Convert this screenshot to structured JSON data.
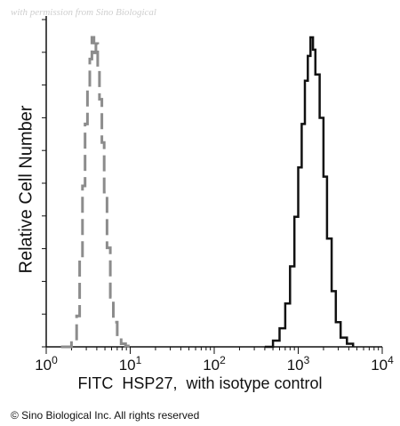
{
  "watermark": "with permission from Sino Biological",
  "copyright": "© Sino Biological Inc. All rights reserved",
  "chart_data": {
    "type": "line",
    "xlabel": "FITC  HSP27,  with isotype control",
    "ylabel": "Relative Cell Number",
    "xscale": "log",
    "xlim": [
      1,
      10000
    ],
    "ylim": [
      0,
      100
    ],
    "x_tick_labels": [
      {
        "base": "10",
        "exp": "0"
      },
      {
        "base": "10",
        "exp": "1"
      },
      {
        "base": "10",
        "exp": "2"
      },
      {
        "base": "10",
        "exp": "3"
      },
      {
        "base": "10",
        "exp": "4"
      }
    ],
    "x_ticks": [
      1,
      10,
      100,
      1000,
      10000
    ],
    "grid": false,
    "series": [
      {
        "color": "#8c8c8c",
        "dash": true,
        "x": [
          1.5,
          2.0,
          2.3,
          2.5,
          2.7,
          2.9,
          3.1,
          3.3,
          3.5,
          3.7,
          3.9,
          4.1,
          4.3,
          4.6,
          4.9,
          5.3,
          5.8,
          6.3,
          7.0,
          7.8,
          8.8,
          10.0
        ],
        "y": [
          0,
          2,
          10,
          28,
          52,
          72,
          84,
          93,
          100,
          95,
          98,
          90,
          80,
          66,
          50,
          32,
          16,
          8,
          3,
          1,
          0.3,
          0
        ]
      },
      {
        "color": "#111111",
        "dash": false,
        "x": [
          400,
          500,
          600,
          700,
          800,
          900,
          1000,
          1100,
          1200,
          1300,
          1400,
          1500,
          1600,
          1800,
          2000,
          2200,
          2500,
          2800,
          3200,
          3800,
          4500
        ],
        "y": [
          0,
          2,
          6,
          14,
          26,
          42,
          58,
          72,
          86,
          94,
          100,
          96,
          88,
          74,
          55,
          35,
          18,
          8,
          3,
          1,
          0
        ]
      }
    ]
  }
}
